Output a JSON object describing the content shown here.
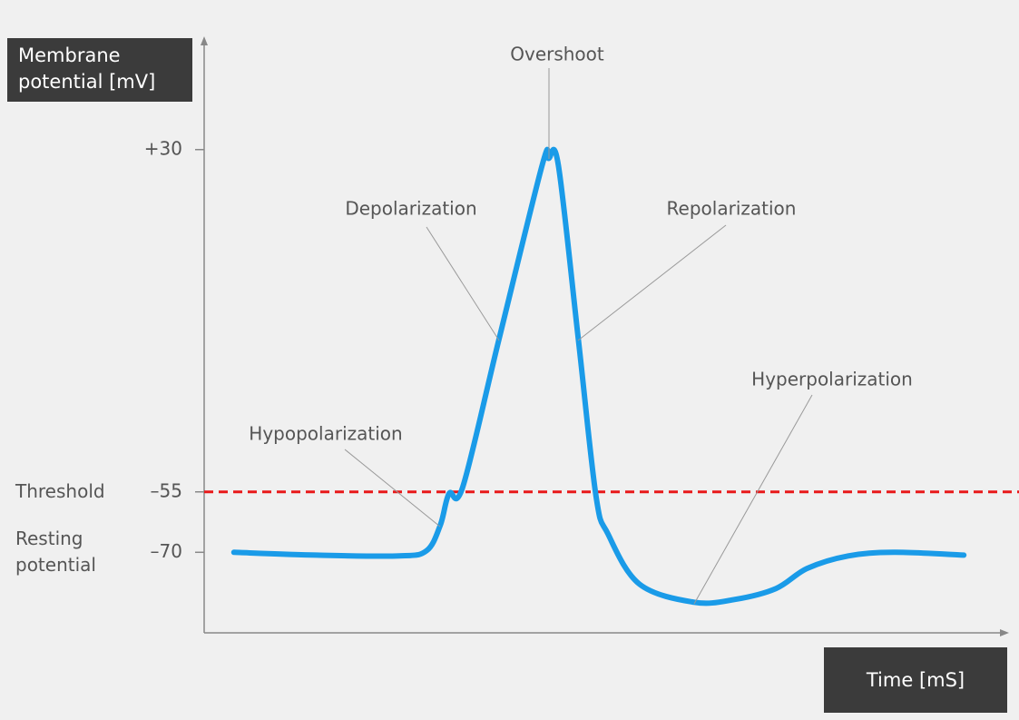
{
  "chart_data": {
    "type": "line",
    "y_title": "Membrane potential [mV]",
    "x_title": "Time [mS]",
    "x": [
      3.7,
      14,
      24.3,
      27.7,
      29.4,
      30.5,
      32.2,
      36.7,
      42.1,
      42.9,
      44.1,
      46.6,
      48.8,
      50.3,
      54.2,
      61,
      66.1,
      71.2,
      75.1,
      80.2,
      85.9,
      94.6
    ],
    "values": [
      -70,
      -70.7,
      -70.9,
      -69.6,
      -63.3,
      -55.4,
      -53.8,
      -17.2,
      26.2,
      27.8,
      26.2,
      -17.2,
      -56.1,
      -65.5,
      -77.9,
      -82.4,
      -81.7,
      -79,
      -74,
      -70.9,
      -70,
      -70.7
    ],
    "color": "#1a9be8",
    "xlim": [
      0,
      100
    ],
    "ylim": [
      -90,
      57
    ],
    "yticks": [
      {
        "value": 30,
        "label": "+30"
      },
      {
        "value": -55,
        "label": "–55"
      },
      {
        "value": -70,
        "label": "–70"
      }
    ],
    "level_labels": [
      {
        "text": "Threshold",
        "value": -55,
        "line_color": "#e8191a"
      },
      {
        "text": "Resting potential",
        "value": -70
      }
    ],
    "annotations": [
      "Overshoot",
      "Depolarization",
      "Repolarization",
      "Hypopolarization",
      "Hyperpolarization"
    ]
  }
}
